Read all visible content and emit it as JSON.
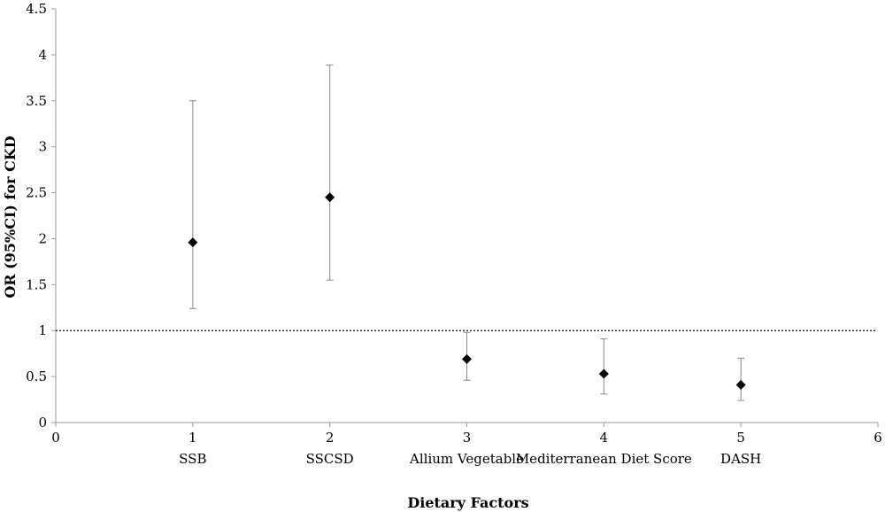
{
  "chart_data": {
    "type": "scatter",
    "title": "",
    "xlabel": "Dietary Factors",
    "ylabel": "OR (95%CI) for CKD",
    "xlim": [
      0,
      6
    ],
    "ylim": [
      0,
      4.5
    ],
    "x_ticks": [
      "0",
      "1",
      "2",
      "3",
      "4",
      "5",
      "6"
    ],
    "y_ticks": [
      "0",
      "0.5",
      "1",
      "1.5",
      "2",
      "2.5",
      "3",
      "3.5",
      "4",
      "4.5"
    ],
    "reference_line": {
      "y": 1,
      "style": "dotted"
    },
    "points": [
      {
        "x": 1,
        "label": "SSB",
        "or": 1.96,
        "ci_low": 1.24,
        "ci_high": 3.5
      },
      {
        "x": 2,
        "label": "SSCSD",
        "or": 2.45,
        "ci_low": 1.55,
        "ci_high": 3.89
      },
      {
        "x": 3,
        "label": "Allium Vegetable",
        "or": 0.69,
        "ci_low": 0.46,
        "ci_high": 0.98
      },
      {
        "x": 4,
        "label": "Mediterranean Diet Score",
        "or": 0.53,
        "ci_low": 0.31,
        "ci_high": 0.91
      },
      {
        "x": 5,
        "label": "DASH",
        "or": 0.41,
        "ci_low": 0.24,
        "ci_high": 0.7
      }
    ],
    "grid": false,
    "colors": {
      "marker": "#000000",
      "error_bar": "#888888",
      "axis": "#999999"
    }
  }
}
